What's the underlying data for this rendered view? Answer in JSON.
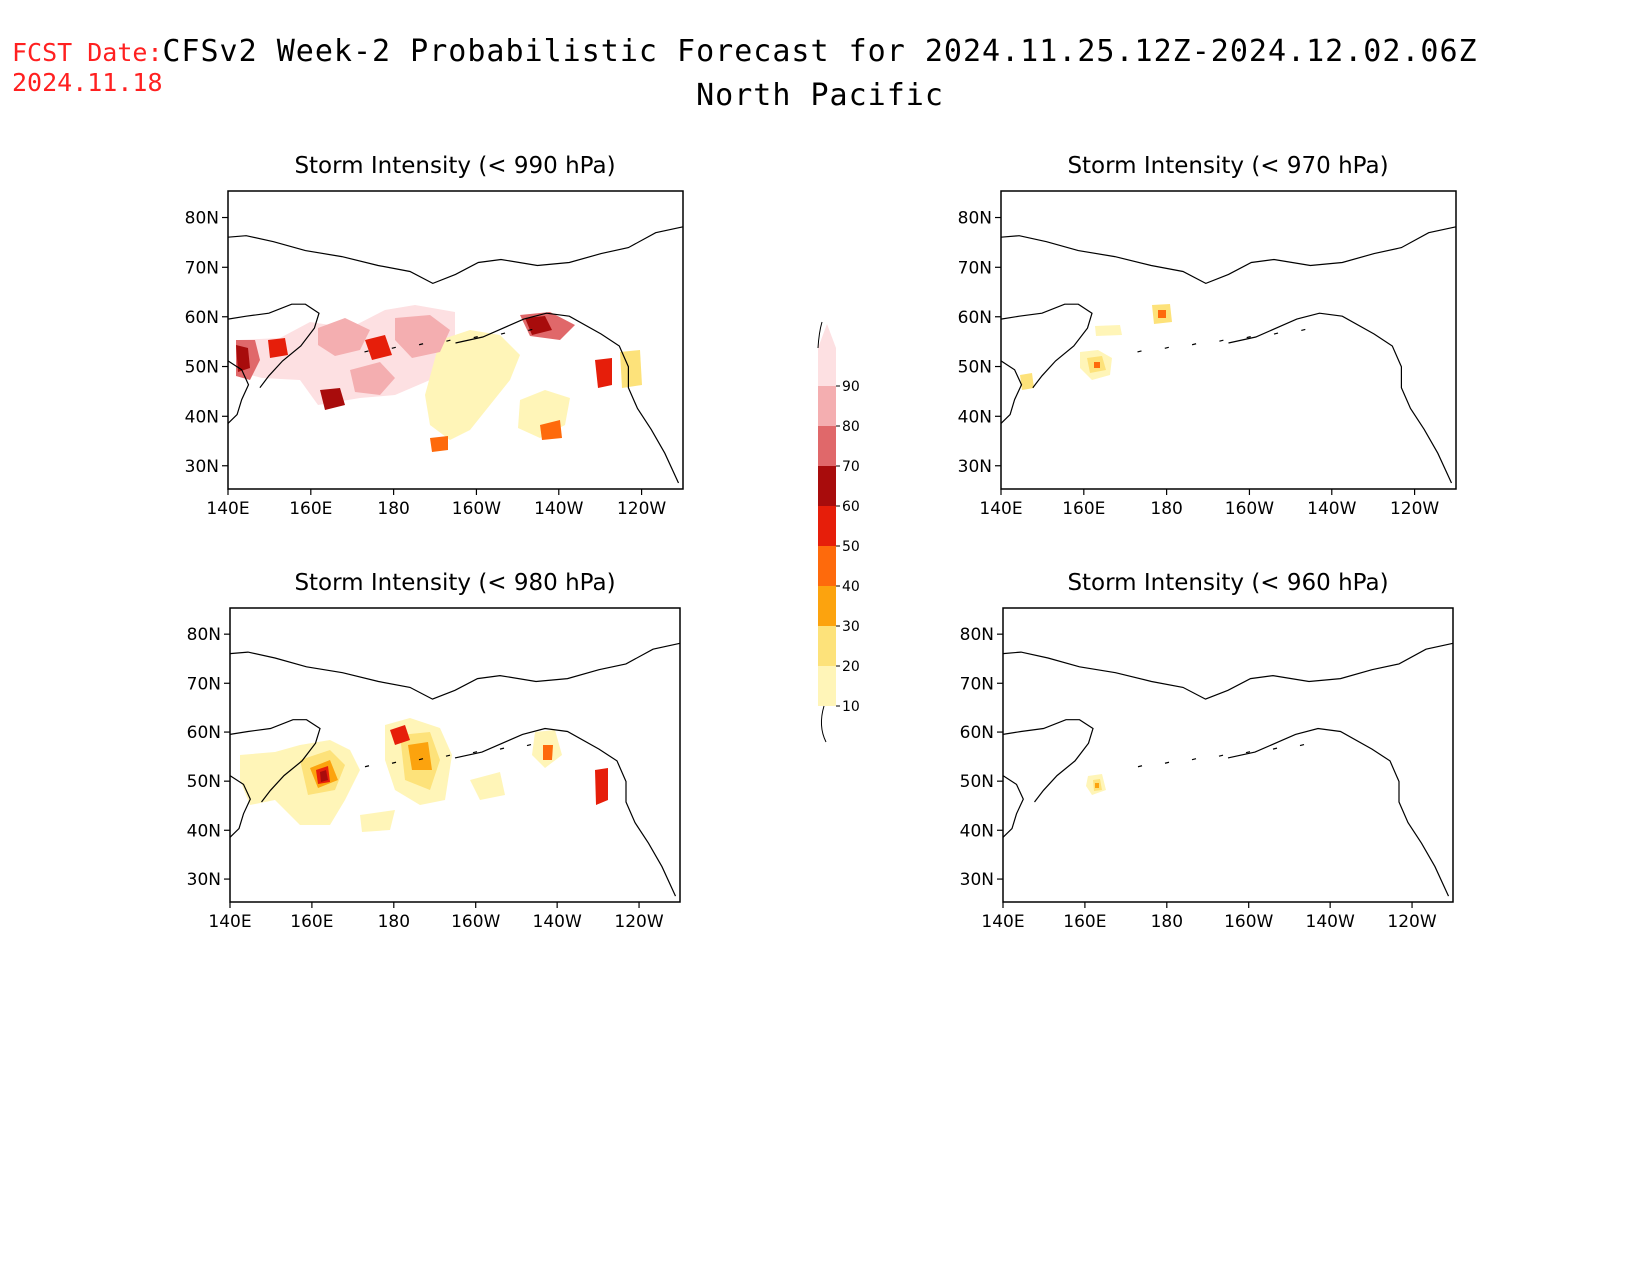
{
  "fcst": {
    "line1": "FCST Date:",
    "line2": "2024.11.18"
  },
  "title": "CFSv2 Week-2 Probabilistic Forecast for 2024.11.25.12Z-2024.12.02.06Z",
  "subtitle": "North Pacific",
  "lat_labels": [
    "80N",
    "70N",
    "60N",
    "50N",
    "40N",
    "30N"
  ],
  "lon_labels": [
    "140E",
    "160E",
    "180",
    "160W",
    "140W",
    "120W"
  ],
  "colorbar": {
    "levels": [
      "10",
      "20",
      "30",
      "40",
      "50",
      "60",
      "70",
      "80",
      "90"
    ],
    "colors": [
      "#fff5b8",
      "#fde27a",
      "#fca30e",
      "#fe6a0c",
      "#e61e0a",
      "#a80c0c",
      "#e0686a",
      "#f4aeb0",
      "#fde0e2"
    ]
  },
  "panels": [
    {
      "id": "p990",
      "title": "Storm Intensity (< 990 hPa)"
    },
    {
      "id": "p980",
      "title": "Storm Intensity (< 980 hPa)"
    },
    {
      "id": "p970",
      "title": "Storm Intensity (< 970 hPa)"
    },
    {
      "id": "p960",
      "title": "Storm Intensity (< 960 hPa)"
    }
  ]
}
